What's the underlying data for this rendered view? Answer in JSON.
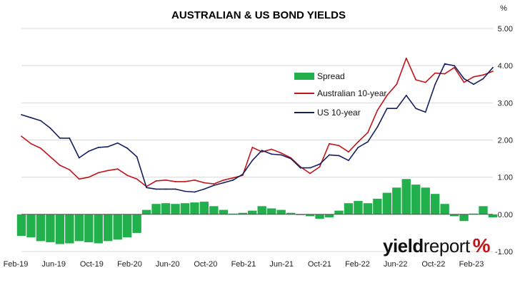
{
  "colors": {
    "spread": "#22b04c",
    "au10": "#c0151b",
    "us10": "#14205e",
    "grid": "#d9d9d9",
    "zero_line": "#444444"
  },
  "logo": {
    "text_bold": "yield",
    "text_regular": "report",
    "symbol": "%"
  },
  "chart_data": {
    "type": "line",
    "title": "AUSTRALIAN & US BOND YIELDS",
    "y_unit": "%",
    "ylim": [
      -1.0,
      5.0
    ],
    "y_ticks": [
      "5.00",
      "4.00",
      "3.00",
      "2.00",
      "1.00",
      "0.00",
      "-1.00"
    ],
    "x_ticks": [
      "Feb-19",
      "Jun-19",
      "Oct-19",
      "Feb-20",
      "Jun-20",
      "Oct-20",
      "Feb-21",
      "Jun-21",
      "Oct-21",
      "Feb-22",
      "Jun-22",
      "Oct-22",
      "Feb-23"
    ],
    "grid": "horizontal",
    "legend": {
      "placement": "upper-right-inside"
    },
    "x": [
      "2019-02",
      "2019-03",
      "2019-04",
      "2019-05",
      "2019-06",
      "2019-07",
      "2019-08",
      "2019-09",
      "2019-10",
      "2019-11",
      "2019-12",
      "2020-01",
      "2020-02",
      "2020-03",
      "2020-04",
      "2020-05",
      "2020-06",
      "2020-07",
      "2020-08",
      "2020-09",
      "2020-10",
      "2020-11",
      "2020-12",
      "2021-01",
      "2021-02",
      "2021-03",
      "2021-04",
      "2021-05",
      "2021-06",
      "2021-07",
      "2021-08",
      "2021-09",
      "2021-10",
      "2021-11",
      "2021-12",
      "2022-01",
      "2022-02",
      "2022-03",
      "2022-04",
      "2022-05",
      "2022-06",
      "2022-07",
      "2022-08",
      "2022-09",
      "2022-10",
      "2022-11",
      "2022-12",
      "2023-01",
      "2023-02",
      "2023-03"
    ],
    "series": [
      {
        "name": "Spread",
        "kind": "bar",
        "values": [
          -0.58,
          -0.62,
          -0.72,
          -0.75,
          -0.8,
          -0.78,
          -0.72,
          -0.75,
          -0.78,
          -0.72,
          -0.68,
          -0.62,
          -0.5,
          0.12,
          0.28,
          0.3,
          0.28,
          0.3,
          0.32,
          0.34,
          0.22,
          0.12,
          0.02,
          0.04,
          0.1,
          0.22,
          0.16,
          0.12,
          0.04,
          -0.02,
          -0.05,
          -0.12,
          -0.08,
          0.1,
          0.3,
          0.36,
          0.3,
          0.42,
          0.58,
          0.72,
          0.95,
          0.8,
          0.72,
          0.55,
          0.28,
          -0.05,
          -0.18,
          0.02,
          0.22,
          -0.08
        ]
      },
      {
        "name": "Australian 10-year",
        "kind": "line",
        "values": [
          2.1,
          1.9,
          1.78,
          1.55,
          1.32,
          1.2,
          0.95,
          1.0,
          1.12,
          1.18,
          1.22,
          1.05,
          0.95,
          0.75,
          0.9,
          0.92,
          0.88,
          0.88,
          0.92,
          0.85,
          0.82,
          0.92,
          0.98,
          1.05,
          1.8,
          1.68,
          1.75,
          1.65,
          1.52,
          1.28,
          1.1,
          1.28,
          1.9,
          1.85,
          1.68,
          1.95,
          2.2,
          2.8,
          3.2,
          3.5,
          4.2,
          3.62,
          3.55,
          3.8,
          3.78,
          3.95,
          3.55,
          3.7,
          3.75,
          3.85
        ]
      },
      {
        "name": "US 10-year",
        "kind": "line",
        "values": [
          2.68,
          2.6,
          2.52,
          2.32,
          2.05,
          2.05,
          1.52,
          1.7,
          1.8,
          1.82,
          1.92,
          1.78,
          1.55,
          0.72,
          0.68,
          0.68,
          0.68,
          0.62,
          0.6,
          0.68,
          0.78,
          0.85,
          0.92,
          1.08,
          1.45,
          1.72,
          1.62,
          1.6,
          1.5,
          1.25,
          1.25,
          1.35,
          1.6,
          1.58,
          1.45,
          1.8,
          1.95,
          2.35,
          2.85,
          2.85,
          3.2,
          2.85,
          2.75,
          3.5,
          4.05,
          4.0,
          3.65,
          3.5,
          3.65,
          3.95
        ]
      }
    ]
  }
}
